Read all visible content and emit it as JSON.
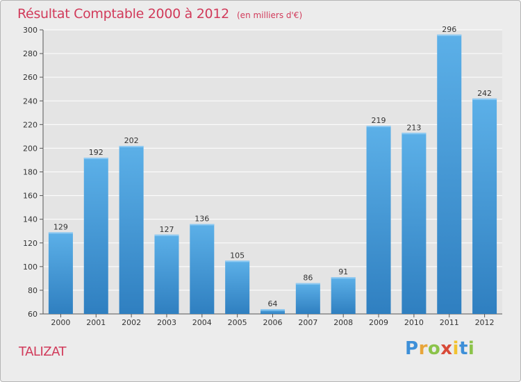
{
  "header": {
    "title": "Résultat Comptable 2000 à 2012",
    "subtitle": "(en milliers d'€)"
  },
  "location": "TALIZAT",
  "brand": {
    "name": "Proxiti",
    "letters": [
      "P",
      "r",
      "o",
      "x",
      "i",
      "t",
      "i"
    ]
  },
  "colors": {
    "title": "#d13a5a",
    "bar_top": "#5cb0e8",
    "bar_bottom": "#2f7fc0",
    "plot_bg": "#e4e4e4",
    "grid": "#ffffff"
  },
  "chart_data": {
    "type": "bar",
    "title": "Résultat Comptable 2000 à 2012",
    "subtitle": "(en milliers d'€)",
    "xlabel": "",
    "ylabel": "",
    "categories": [
      "2000",
      "2001",
      "2002",
      "2003",
      "2004",
      "2005",
      "2006",
      "2007",
      "2008",
      "2009",
      "2010",
      "2011",
      "2012"
    ],
    "values": [
      129,
      192,
      202,
      127,
      136,
      105,
      64,
      86,
      91,
      219,
      213,
      296,
      242
    ],
    "ylim": [
      60,
      300
    ],
    "yticks": [
      60,
      80,
      100,
      120,
      140,
      160,
      180,
      200,
      220,
      240,
      260,
      280,
      300
    ],
    "grid": true,
    "data_labels": true
  }
}
